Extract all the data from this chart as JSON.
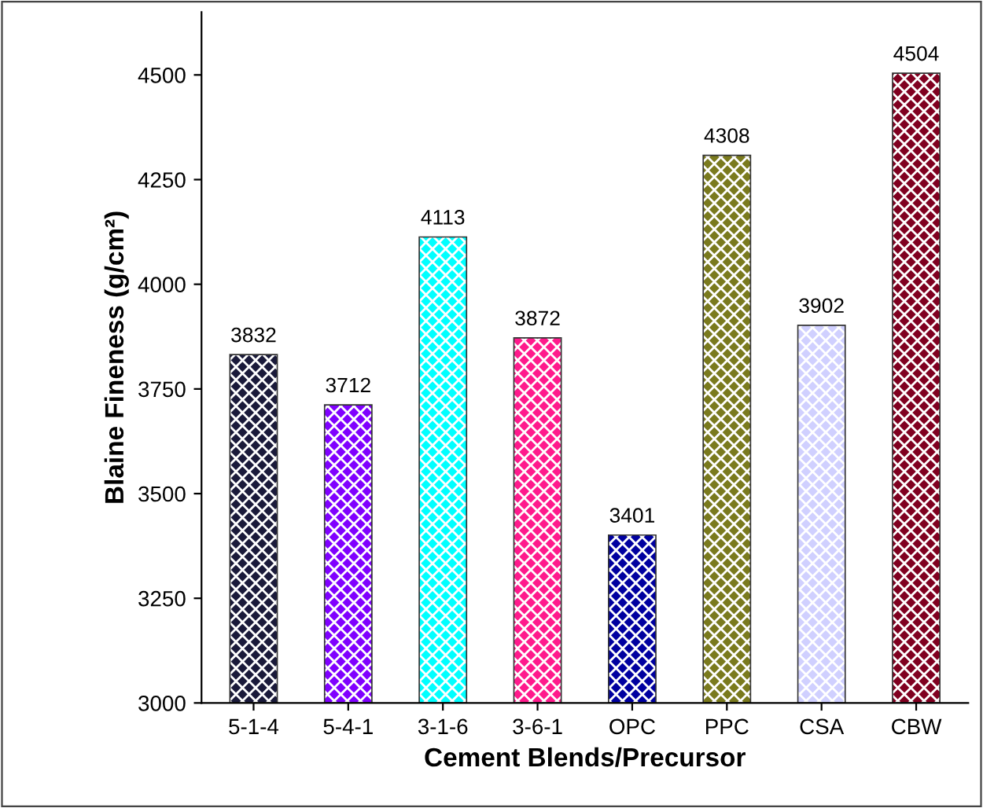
{
  "chart_data": {
    "type": "bar",
    "xlabel": "Cement Blends/Precursor",
    "ylabel": "Blaine Fineness (g/cm²)",
    "categories": [
      "5-1-4",
      "5-4-1",
      "3-1-6",
      "3-6-1",
      "OPC",
      "PPC",
      "CSA",
      "CBW"
    ],
    "values": [
      3832,
      3712,
      4113,
      3872,
      3401,
      4308,
      3902,
      4504
    ],
    "colors": [
      "#1a1a3a",
      "#8000ff",
      "#00ffff",
      "#ff1a8c",
      "#0000a0",
      "#7a7a1e",
      "#d0d0ff",
      "#800020"
    ],
    "ylim": [
      3000,
      4650
    ],
    "yticks": [
      3000,
      3250,
      3500,
      3750,
      4000,
      4250,
      4500
    ],
    "data_labels": true,
    "grid": false,
    "legend": false
  }
}
